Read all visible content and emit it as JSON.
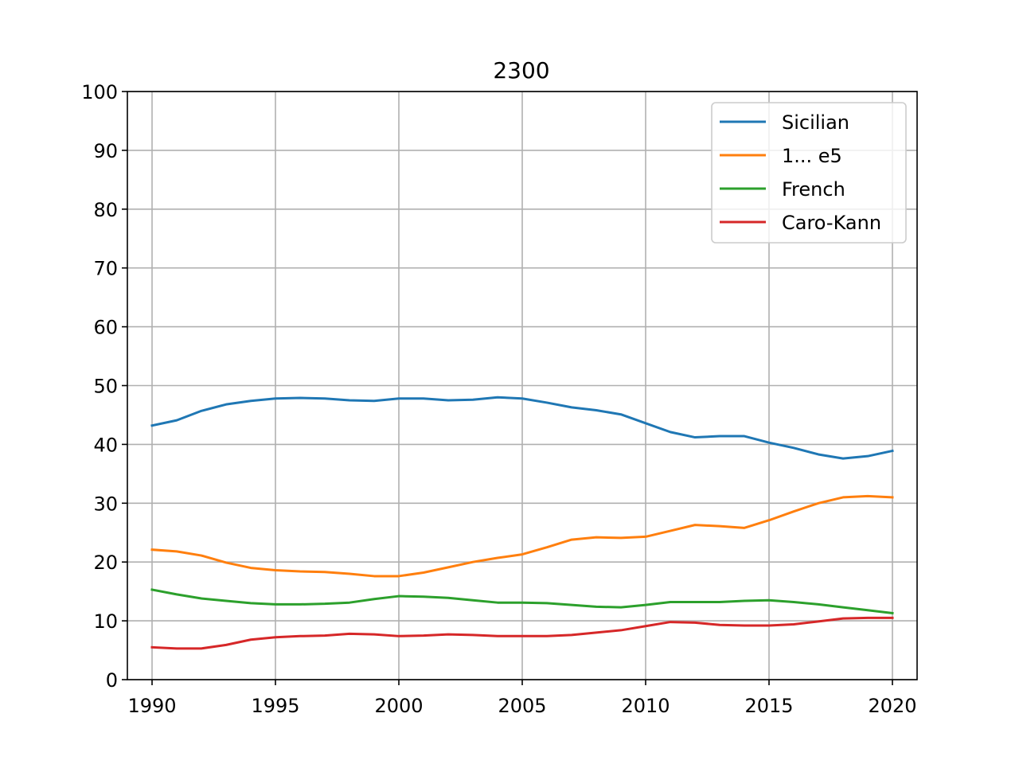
{
  "chart_data": {
    "type": "line",
    "title": "2300",
    "xlabel": "",
    "ylabel": "",
    "xlim": [
      1989,
      2021
    ],
    "ylim": [
      0,
      100
    ],
    "x_ticks": [
      1990,
      1995,
      2000,
      2005,
      2010,
      2015,
      2020
    ],
    "y_ticks": [
      0,
      10,
      20,
      30,
      40,
      50,
      60,
      70,
      80,
      90,
      100
    ],
    "grid": true,
    "legend_position": "top-right",
    "x": [
      1990,
      1991,
      1992,
      1993,
      1994,
      1995,
      1996,
      1997,
      1998,
      1999,
      2000,
      2001,
      2002,
      2003,
      2004,
      2005,
      2006,
      2007,
      2008,
      2009,
      2010,
      2011,
      2012,
      2013,
      2014,
      2015,
      2016,
      2017,
      2018,
      2019,
      2020
    ],
    "series": [
      {
        "name": "Sicilian",
        "color": "#1f77b4",
        "values": [
          43.2,
          44.1,
          45.7,
          46.8,
          47.4,
          47.8,
          47.9,
          47.8,
          47.5,
          47.4,
          47.8,
          47.8,
          47.5,
          47.6,
          48.0,
          47.8,
          47.1,
          46.3,
          45.8,
          45.1,
          43.6,
          42.1,
          41.2,
          41.4,
          41.4,
          40.3,
          39.4,
          38.3,
          37.6,
          38.0,
          38.9
        ]
      },
      {
        "name": "1... e5",
        "color": "#ff7f0e",
        "values": [
          22.1,
          21.8,
          21.1,
          19.9,
          19.0,
          18.6,
          18.4,
          18.3,
          18.0,
          17.6,
          17.6,
          18.2,
          19.1,
          20.0,
          20.7,
          21.3,
          22.5,
          23.8,
          24.2,
          24.1,
          24.3,
          25.3,
          26.3,
          26.1,
          25.8,
          27.1,
          28.6,
          30.0,
          31.0,
          31.2,
          31.0
        ]
      },
      {
        "name": "French",
        "color": "#2ca02c",
        "values": [
          15.3,
          14.5,
          13.8,
          13.4,
          13.0,
          12.8,
          12.8,
          12.9,
          13.1,
          13.7,
          14.2,
          14.1,
          13.9,
          13.5,
          13.1,
          13.1,
          13.0,
          12.7,
          12.4,
          12.3,
          12.7,
          13.2,
          13.2,
          13.2,
          13.4,
          13.5,
          13.2,
          12.8,
          12.3,
          11.8,
          11.3
        ]
      },
      {
        "name": "Caro-Kann",
        "color": "#d62728",
        "values": [
          5.5,
          5.3,
          5.3,
          5.9,
          6.8,
          7.2,
          7.4,
          7.5,
          7.8,
          7.7,
          7.4,
          7.5,
          7.7,
          7.6,
          7.4,
          7.4,
          7.4,
          7.6,
          8.0,
          8.4,
          9.1,
          9.8,
          9.7,
          9.3,
          9.2,
          9.2,
          9.4,
          9.9,
          10.4,
          10.5,
          10.5
        ]
      }
    ]
  }
}
